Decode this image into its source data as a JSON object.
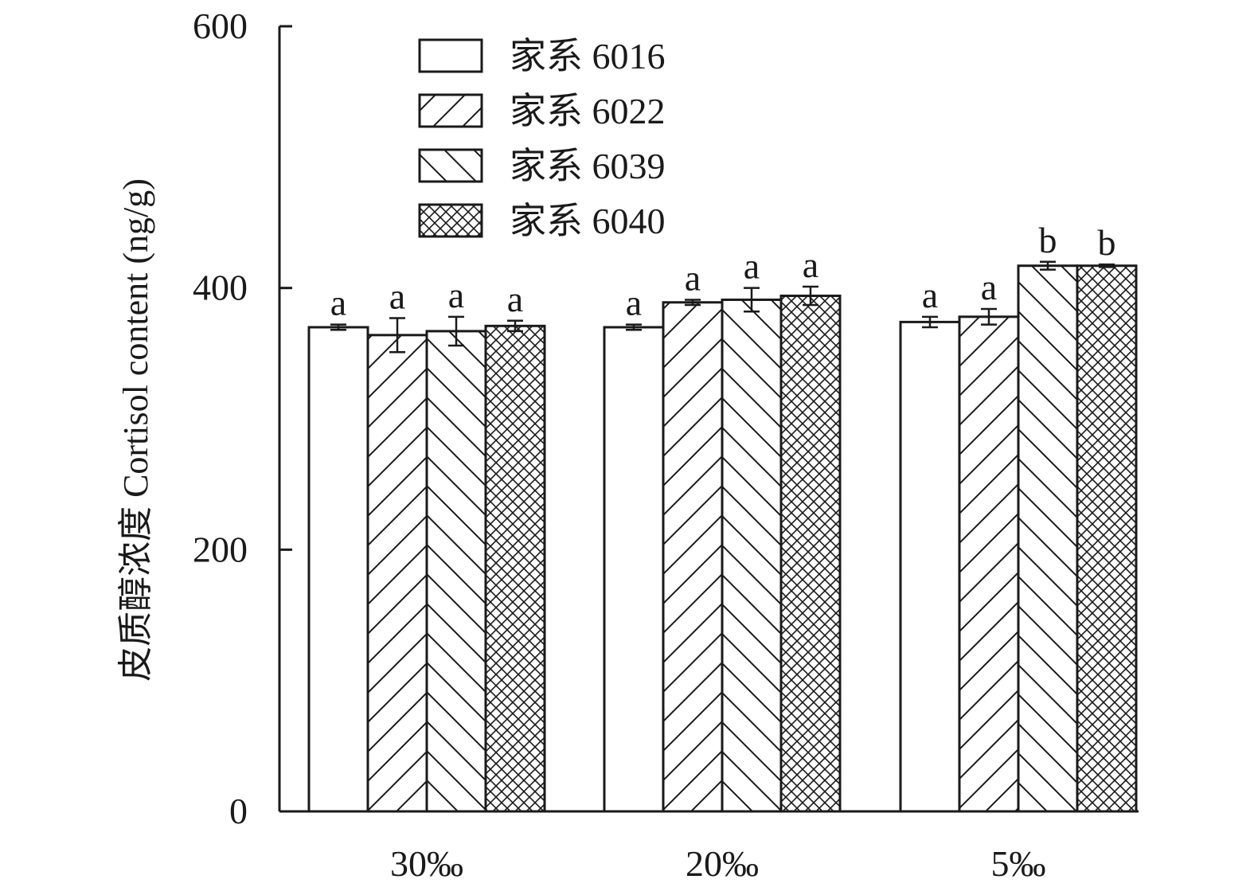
{
  "chart_data": {
    "type": "bar",
    "title": "",
    "xlabel": "",
    "ylabel": "皮质醇浓度 Cortisol content (ng/g)",
    "ylim": [
      0,
      600
    ],
    "yticks": [
      0,
      200,
      400,
      600
    ],
    "grid": false,
    "legend_position": "top-left",
    "categories": [
      "30‰",
      "20‰",
      "5‰"
    ],
    "series": [
      {
        "name": "家系 6016",
        "pattern": "none",
        "values": [
          370,
          370,
          374
        ],
        "errors": [
          2,
          2,
          4
        ],
        "letters": [
          "a",
          "a",
          "a"
        ]
      },
      {
        "name": "家系 6022",
        "pattern": "forward-diagonal",
        "values": [
          364,
          389,
          378
        ],
        "errors": [
          13,
          2,
          6
        ],
        "letters": [
          "a",
          "a",
          "a"
        ]
      },
      {
        "name": "家系 6039",
        "pattern": "backward-diagonal",
        "values": [
          367,
          391,
          417
        ],
        "errors": [
          11,
          9,
          3
        ],
        "letters": [
          "a",
          "a",
          "b"
        ]
      },
      {
        "name": "家系 6040",
        "pattern": "crosshatch",
        "values": [
          371,
          394,
          417
        ],
        "errors": [
          4,
          7,
          1
        ],
        "letters": [
          "a",
          "a",
          "b"
        ]
      }
    ]
  },
  "colors": {
    "ink": "#1a1a1a",
    "fill": "#ffffff"
  }
}
